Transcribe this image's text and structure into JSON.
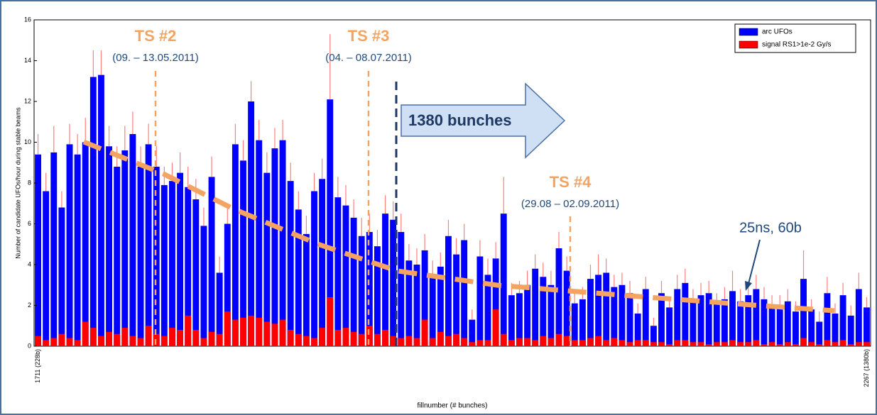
{
  "chart_data": {
    "type": "bar",
    "ylabel": "Number of candidate UFOs/hour during stable beams",
    "xlabel": "fillnumber (# bunches)",
    "ylim": [
      0,
      16
    ],
    "yticks": [
      0,
      2,
      4,
      6,
      8,
      10,
      12,
      14,
      16
    ],
    "legend": "upper right",
    "categories": [
      "1711 (228b)",
      null,
      null,
      null,
      null,
      null,
      null,
      null,
      null,
      null,
      null,
      null,
      null,
      null,
      null,
      null,
      null,
      null,
      null,
      null,
      null,
      null,
      null,
      null,
      null,
      null,
      null,
      null,
      null,
      null,
      null,
      null,
      null,
      null,
      null,
      null,
      null,
      null,
      null,
      null,
      null,
      null,
      null,
      null,
      null,
      null,
      null,
      null,
      null,
      null,
      null,
      null,
      null,
      null,
      null,
      null,
      null,
      null,
      null,
      null,
      null,
      null,
      null,
      null,
      null,
      null,
      null,
      null,
      null,
      null,
      null,
      null,
      null,
      null,
      null,
      null,
      null,
      null,
      null,
      null,
      null,
      null,
      null,
      null,
      null,
      null,
      null,
      null,
      null,
      null,
      null,
      null,
      null,
      null,
      null,
      null,
      null,
      null,
      null,
      null,
      null,
      null,
      null,
      null,
      null,
      "2267 (1380b)"
    ],
    "series": [
      {
        "name": "arc UFOs",
        "color": "#0000ff",
        "values": [
          9.4,
          7.6,
          9.5,
          6.8,
          9.9,
          9.4,
          10.0,
          13.2,
          13.3,
          9.8,
          8.8,
          9.6,
          10.4,
          8.8,
          9.9,
          8.8,
          7.9,
          8.1,
          8.5,
          7.8,
          7.2,
          5.9,
          8.3,
          3.6,
          6.0,
          9.9,
          9.1,
          12.0,
          10.1,
          8.5,
          9.7,
          10.1,
          8.1,
          6.7,
          5.5,
          7.6,
          8.2,
          12.1,
          7.3,
          6.9,
          6.3,
          5.4,
          5.6,
          4.9,
          6.5,
          6.2,
          5.6,
          4.2,
          4.0,
          4.7,
          3.5,
          3.9,
          5.4,
          4.5,
          5.2,
          1.3,
          4.4,
          3.5,
          4.3,
          6.5,
          2.5,
          2.6,
          3.0,
          3.8,
          3.4,
          3.0,
          4.8,
          3.7,
          2.1,
          2.3,
          3.3,
          3.5,
          3.6,
          2.9,
          3.0,
          2.6,
          1.6,
          2.8,
          1.0,
          2.6,
          1.9,
          2.8,
          3.1,
          2.2,
          2.5,
          2.6,
          2.1,
          2.3,
          2.7,
          2.2,
          2.5,
          2.8,
          2.3,
          2.0,
          2.0,
          2.2,
          1.7,
          3.3,
          1.8,
          1.2,
          2.6,
          1.6,
          2.5,
          1.5,
          2.8,
          1.9
        ],
        "errors": [
          1.0,
          0.9,
          1.3,
          0.8,
          1.0,
          1.0,
          1.2,
          1.3,
          1.2,
          1.0,
          1.0,
          1.2,
          1.1,
          1.0,
          1.0,
          1.0,
          0.9,
          0.9,
          1.0,
          1.0,
          1.0,
          0.9,
          1.0,
          0.8,
          1.0,
          1.0,
          1.0,
          1.0,
          1.0,
          1.0,
          1.0,
          1.0,
          0.9,
          0.9,
          0.9,
          0.9,
          1.0,
          3.2,
          1.0,
          1.0,
          0.9,
          0.9,
          0.9,
          0.8,
          0.9,
          0.9,
          0.9,
          0.8,
          0.8,
          0.8,
          0.7,
          0.7,
          0.8,
          0.8,
          0.8,
          0.5,
          0.8,
          0.8,
          0.8,
          1.8,
          0.6,
          0.6,
          0.7,
          0.7,
          0.7,
          0.7,
          0.8,
          0.7,
          0.6,
          0.6,
          0.7,
          1.0,
          0.7,
          0.6,
          0.6,
          0.6,
          0.5,
          0.6,
          0.4,
          0.6,
          0.5,
          0.7,
          0.7,
          0.6,
          0.6,
          0.6,
          0.5,
          0.6,
          1.0,
          0.6,
          0.6,
          0.7,
          0.6,
          0.5,
          0.5,
          0.6,
          0.5,
          1.4,
          0.5,
          0.5,
          0.8,
          0.5,
          0.6,
          0.5,
          0.8,
          0.5
        ],
        "error_color": "#ff7f7f"
      },
      {
        "name": "signal RS1>1e-2 Gy/s",
        "color": "#ff0000",
        "values": [
          0.5,
          0.3,
          0.4,
          0.6,
          0.4,
          0.3,
          1.2,
          0.9,
          0.5,
          0.7,
          0.6,
          0.9,
          0.5,
          0.4,
          1.0,
          0.6,
          0.5,
          0.9,
          0.8,
          1.5,
          0.8,
          0.4,
          0.7,
          0.6,
          1.7,
          1.3,
          1.4,
          1.5,
          1.4,
          1.2,
          1.1,
          1.3,
          0.8,
          0.6,
          0.5,
          0.4,
          0.9,
          2.4,
          0.8,
          0.9,
          0.7,
          0.6,
          1.0,
          0.6,
          0.8,
          0.5,
          0.4,
          0.5,
          0.4,
          1.3,
          0.4,
          0.7,
          0.5,
          0.6,
          0.4,
          0.2,
          0.3,
          0.3,
          1.8,
          0.6,
          0.3,
          0.4,
          0.4,
          0.3,
          0.5,
          0.4,
          0.6,
          0.5,
          0.3,
          0.3,
          0.4,
          0.5,
          0.3,
          0.4,
          0.3,
          0.2,
          0.3,
          0.3,
          0.2,
          0.2,
          0.1,
          0.3,
          0.3,
          0.2,
          0.2,
          0.1,
          0.2,
          0.2,
          0.3,
          0.2,
          0.2,
          0.3,
          0.1,
          0.2,
          0.1,
          0.2,
          0.1,
          0.4,
          0.2,
          0.1,
          0.3,
          0.2,
          0.3,
          0.1,
          0.2,
          0.2
        ]
      }
    ],
    "annotations": [
      "TS #2",
      "(09. – 13.05.2011)",
      "TS #3",
      "(04. – 08.07.2011)",
      "1380 bunches",
      "TS #4",
      "(29.08 – 02.09.2011)",
      "25ns, 60b"
    ]
  }
}
